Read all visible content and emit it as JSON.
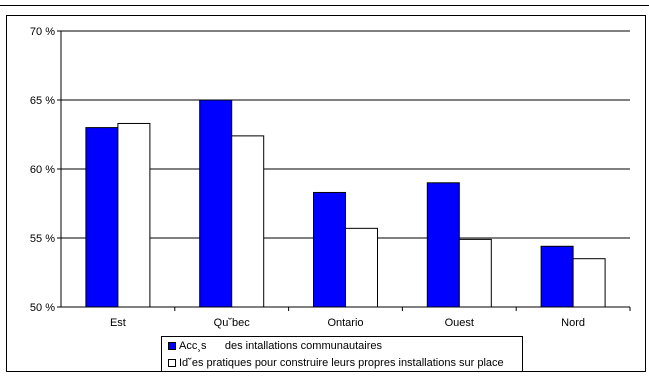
{
  "chart_data": {
    "type": "bar",
    "categories": [
      "Est",
      "Qu˘bec",
      "Ontario",
      "Ouest",
      "Nord"
    ],
    "series": [
      {
        "name": "Acc¸s      des intallations communautaires",
        "values": [
          63.0,
          65.0,
          58.3,
          59.0,
          54.4
        ],
        "color": "#0000ff"
      },
      {
        "name": "Id˘es pratiques pour construire leurs propres installations sur place",
        "values": [
          63.3,
          62.4,
          55.7,
          54.9,
          53.5
        ],
        "color": "#ffffff"
      }
    ],
    "ylim": [
      50,
      70
    ],
    "yticks": [
      "50 %",
      "55 %",
      "60 %",
      "65 %",
      "70 %"
    ],
    "grid": true,
    "legend_position": "bottom"
  }
}
